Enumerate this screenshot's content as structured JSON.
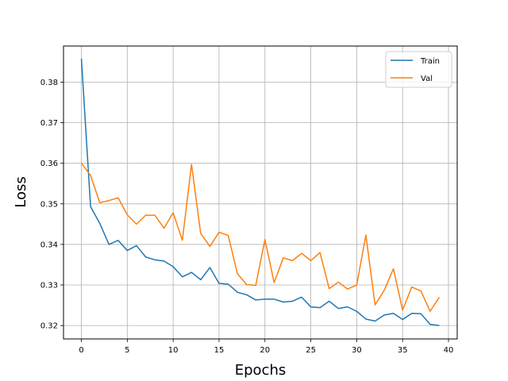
{
  "chart_data": {
    "type": "line",
    "xlabel": "Epochs",
    "ylabel": "Loss",
    "xlim": [
      -1.95,
      40.95
    ],
    "ylim": [
      0.3167,
      0.3889
    ],
    "x_ticks": [
      0,
      5,
      10,
      15,
      20,
      25,
      30,
      35,
      40
    ],
    "y_ticks": [
      0.32,
      0.33,
      0.34,
      0.35,
      0.36,
      0.37,
      0.38
    ],
    "grid": true,
    "legend_position": "top-right",
    "x": [
      0,
      1,
      2,
      3,
      4,
      5,
      6,
      7,
      8,
      9,
      10,
      11,
      12,
      13,
      14,
      15,
      16,
      17,
      18,
      19,
      20,
      21,
      22,
      23,
      24,
      25,
      26,
      27,
      28,
      29,
      30,
      31,
      32,
      33,
      34,
      35,
      36,
      37,
      38,
      39
    ],
    "series": [
      {
        "name": "Train",
        "color": "#1f77b4",
        "values": [
          0.3858,
          0.3493,
          0.3452,
          0.34,
          0.341,
          0.3385,
          0.3397,
          0.3369,
          0.3362,
          0.3359,
          0.3345,
          0.332,
          0.3331,
          0.3313,
          0.3343,
          0.3304,
          0.3302,
          0.3282,
          0.3276,
          0.3263,
          0.3265,
          0.3265,
          0.3258,
          0.326,
          0.327,
          0.3246,
          0.3244,
          0.326,
          0.3242,
          0.3246,
          0.3235,
          0.3216,
          0.3211,
          0.3226,
          0.323,
          0.3215,
          0.323,
          0.3229,
          0.3203,
          0.32
        ]
      },
      {
        "name": "Val",
        "color": "#ff7f0e",
        "values": [
          0.36,
          0.357,
          0.3503,
          0.3508,
          0.3515,
          0.3473,
          0.345,
          0.3472,
          0.3472,
          0.344,
          0.3478,
          0.341,
          0.3597,
          0.3427,
          0.3395,
          0.343,
          0.3422,
          0.3328,
          0.3301,
          0.3299,
          0.3412,
          0.3306,
          0.3367,
          0.336,
          0.3378,
          0.336,
          0.338,
          0.3291,
          0.3307,
          0.329,
          0.33,
          0.3423,
          0.3251,
          0.3287,
          0.334,
          0.3238,
          0.3295,
          0.3285,
          0.3235,
          0.327
        ]
      }
    ]
  }
}
